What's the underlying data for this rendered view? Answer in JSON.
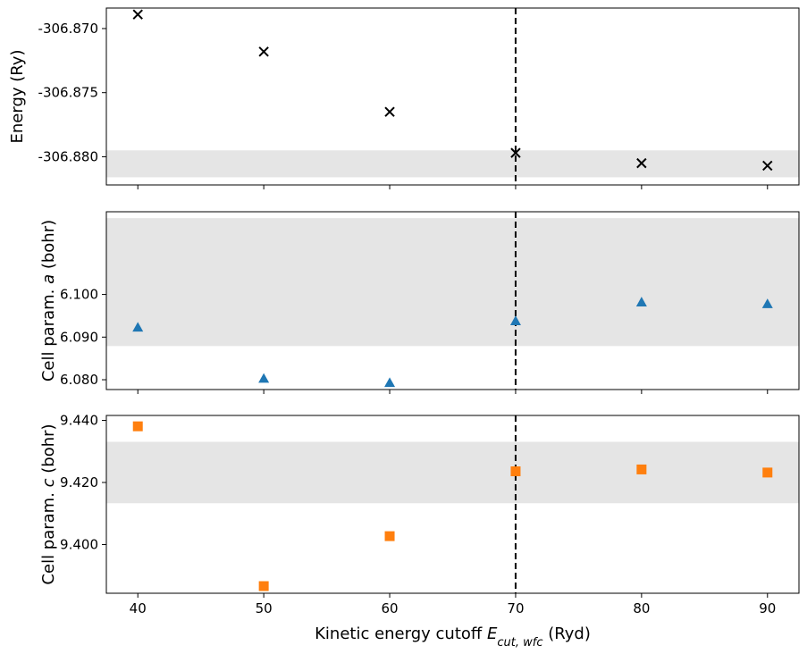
{
  "chart_data": [
    {
      "type": "scatter",
      "ylabel": "Energy (Ry)",
      "x": [
        40,
        50,
        60,
        70,
        80,
        90
      ],
      "values": [
        -306.8689,
        -306.8718,
        -306.8765,
        -306.8797,
        -306.8805,
        -306.8807
      ],
      "xlim": [
        37.5,
        92.5
      ],
      "ylim": [
        -306.8822,
        -306.8684
      ],
      "yticks": [
        -306.87,
        -306.875,
        -306.88
      ],
      "ytick_labels": [
        "-306.870",
        "-306.875",
        "-306.880"
      ],
      "xticks": [
        40,
        50,
        60,
        70,
        80,
        90
      ],
      "band": [
        -306.8816,
        -306.8795
      ],
      "vline": 70,
      "marker": "x",
      "color": "#000000"
    },
    {
      "type": "scatter",
      "ylabel_parts": [
        "Cell param. ",
        "a",
        " (bohr)"
      ],
      "x": [
        40,
        50,
        60,
        70,
        80,
        90
      ],
      "values": [
        6.0923,
        6.0803,
        6.0793,
        6.0938,
        6.0982,
        6.0978
      ],
      "xlim": [
        37.5,
        92.5
      ],
      "ylim": [
        6.0777,
        6.1194
      ],
      "yticks": [
        6.08,
        6.09,
        6.1
      ],
      "ytick_labels": [
        "6.080",
        "6.090",
        "6.100"
      ],
      "xticks": [
        40,
        50,
        60,
        70,
        80,
        90
      ],
      "band": [
        6.0879,
        6.1179
      ],
      "vline": 70,
      "marker": "triangle",
      "color": "#1f77b4"
    },
    {
      "type": "scatter",
      "ylabel_parts": [
        "Cell param. ",
        "c",
        " (bohr)"
      ],
      "xlabel_parts": [
        "Kinetic energy cutoff ",
        "E",
        "cut, wfc",
        " (Ryd)"
      ],
      "x": [
        40,
        50,
        60,
        70,
        80,
        90
      ],
      "values": [
        9.4381,
        9.3866,
        9.4027,
        9.4236,
        9.4242,
        9.4232
      ],
      "xlim": [
        37.5,
        92.5
      ],
      "ylim": [
        9.3843,
        9.4416
      ],
      "yticks": [
        9.4,
        9.42,
        9.44
      ],
      "ytick_labels": [
        "9.400",
        "9.420",
        "9.440"
      ],
      "xticks": [
        40,
        50,
        60,
        70,
        80,
        90
      ],
      "xtick_labels": [
        "40",
        "50",
        "60",
        "70",
        "80",
        "90"
      ],
      "band": [
        9.4133,
        9.4331
      ],
      "vline": 70,
      "marker": "square",
      "color": "#ff7f0e"
    }
  ],
  "style": {
    "band_color": "#d3d3d3",
    "vline_color": "#000000"
  }
}
